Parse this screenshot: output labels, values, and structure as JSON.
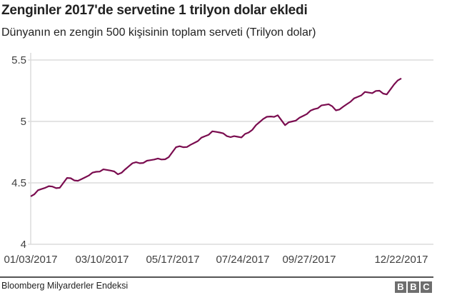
{
  "header": {
    "title": "Zenginler 2017'de servetine 1 trilyon dolar ekledi",
    "subtitle": "Dünyanın en zengin 500 kişisinin toplam serveti (Trilyon dolar)"
  },
  "footer": {
    "source": "Bloomberg Milyarderler Endeksi",
    "logo_letters": [
      "B",
      "B",
      "C"
    ]
  },
  "colors": {
    "line": "#7a0c4f",
    "grid": "#dcdcdc",
    "axis_text": "#404040",
    "logo_bg": "#6e6e6e"
  },
  "chart_data": {
    "type": "line",
    "title": "Zenginler 2017'de servetine 1 trilyon dolar ekledi",
    "subtitle": "Dünyanın en zengin 500 kişisinin toplam serveti (Trilyon dolar)",
    "xlabel": "",
    "ylabel": "Trilyon dolar",
    "ylim": [
      4,
      5.5
    ],
    "yticks": [
      4,
      4.5,
      5,
      5.5
    ],
    "ytick_labels": [
      "4",
      "4.5",
      "5",
      "5.5"
    ],
    "xtick_labels": [
      "01/03/2017",
      "03/10/2017",
      "05/17/2017",
      "07/24/2017",
      "09/27/2017",
      "12/22/2017"
    ],
    "grid": true,
    "legend": null,
    "series": [
      {
        "name": "Toplam servet",
        "x": [
          "01/03/2017",
          "01/10/2017",
          "01/17/2017",
          "01/24/2017",
          "01/31/2017",
          "02/07/2017",
          "02/14/2017",
          "02/21/2017",
          "02/28/2017",
          "03/07/2017",
          "03/14/2017",
          "03/21/2017",
          "03/28/2017",
          "04/04/2017",
          "04/11/2017",
          "04/18/2017",
          "04/25/2017",
          "05/02/2017",
          "05/09/2017",
          "05/16/2017",
          "05/23/2017",
          "05/30/2017",
          "06/06/2017",
          "06/13/2017",
          "06/20/2017",
          "06/27/2017",
          "07/04/2017",
          "07/11/2017",
          "07/18/2017",
          "07/25/2017",
          "08/01/2017",
          "08/08/2017",
          "08/15/2017",
          "08/22/2017",
          "08/29/2017",
          "09/05/2017",
          "09/12/2017",
          "09/19/2017",
          "09/26/2017",
          "10/03/2017",
          "10/10/2017",
          "10/17/2017",
          "10/24/2017",
          "10/31/2017",
          "11/07/2017",
          "11/14/2017",
          "11/21/2017",
          "11/28/2017",
          "12/05/2017",
          "12/12/2017",
          "12/19/2017",
          "12/22/2017"
        ],
        "values": [
          4.39,
          4.44,
          4.46,
          4.47,
          4.46,
          4.54,
          4.52,
          4.53,
          4.56,
          4.59,
          4.61,
          4.6,
          4.57,
          4.61,
          4.66,
          4.66,
          4.68,
          4.69,
          4.69,
          4.71,
          4.79,
          4.79,
          4.81,
          4.84,
          4.88,
          4.92,
          4.91,
          4.88,
          4.88,
          4.87,
          4.91,
          4.97,
          5.02,
          5.04,
          5.05,
          4.97,
          5.0,
          5.03,
          5.06,
          5.1,
          5.13,
          5.14,
          5.09,
          5.12,
          5.16,
          5.2,
          5.24,
          5.23,
          5.25,
          5.22,
          5.3,
          5.35
        ]
      }
    ]
  }
}
